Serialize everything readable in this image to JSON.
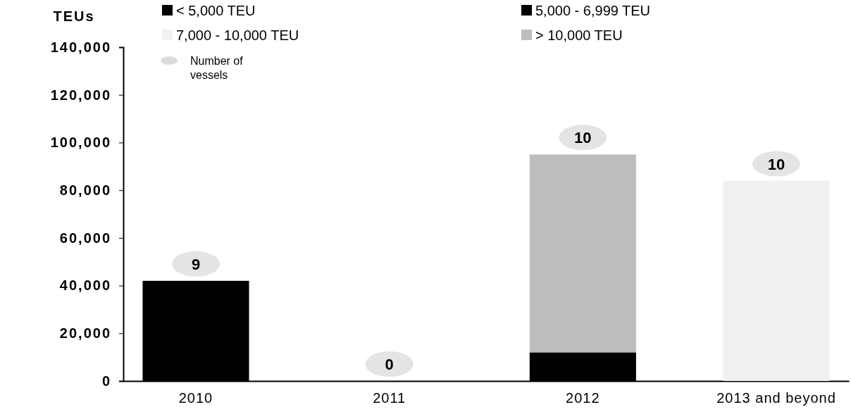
{
  "chart_data": {
    "type": "bar",
    "stacked": true,
    "ylabel": "TEUs",
    "categories": [
      "2010",
      "2011",
      "2012",
      "2013 and beyond"
    ],
    "series": [
      {
        "name": "< 5,000 TEU",
        "color": "#000000",
        "values": [
          42000,
          0,
          0,
          0
        ]
      },
      {
        "name": "5,000 - 6,999 TEU",
        "color": "#000000",
        "values": [
          0,
          0,
          12000,
          0
        ]
      },
      {
        "name": "7,000 - 10,000 TEU",
        "color": "#f0f0f0",
        "values": [
          0,
          0,
          0,
          84000
        ]
      },
      {
        "name": "> 10,000 TEU",
        "color": "#bdbdbd",
        "values": [
          0,
          0,
          83000,
          0
        ]
      }
    ],
    "annotations": [
      "Number of vessels",
      "9",
      "0",
      "10",
      "10"
    ],
    "ylim": [
      0,
      140000
    ],
    "yticks": [
      0,
      {
        "value": 20000,
        "label": "20,000"
      },
      {
        "value": 40000,
        "label": "40,000"
      },
      {
        "value": 60000,
        "label": "60,000"
      },
      {
        "value": 80000,
        "label": "80,000"
      },
      {
        "value": 100000,
        "label": "100,000"
      },
      {
        "value": 120000,
        "label": "120,000"
      },
      {
        "value": 140000,
        "label": "140,000"
      }
    ],
    "grid": false,
    "legend": "top"
  }
}
